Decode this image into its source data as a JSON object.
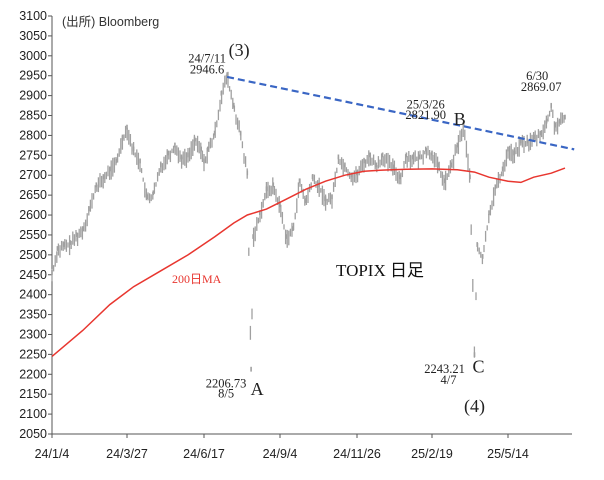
{
  "chart_data": {
    "type": "line",
    "title": "TOPIX 日足",
    "source": "(出所) Bloomberg",
    "ylim": [
      2050,
      3100
    ],
    "yticks": [
      2050,
      2100,
      2150,
      2200,
      2250,
      2300,
      2350,
      2400,
      2450,
      2500,
      2550,
      2600,
      2650,
      2700,
      2750,
      2800,
      2850,
      2900,
      2950,
      3000,
      3050,
      3100
    ],
    "xtick_labels": [
      "24/1/4",
      "24/3/27",
      "24/6/17",
      "24/9/4",
      "24/11/26",
      "25/2/19",
      "25/5/14"
    ],
    "grid": false,
    "series": [
      {
        "name": "TOPIX",
        "color": "#a0a0a0",
        "style": "daily high-low bars",
        "points": [
          [
            "24/1/4",
            2450
          ],
          [
            "24/1/10",
            2510
          ],
          [
            "24/1/17",
            2520
          ],
          [
            "24/1/24",
            2525
          ],
          [
            "24/1/31",
            2545
          ],
          [
            "24/2/7",
            2560
          ],
          [
            "24/2/14",
            2610
          ],
          [
            "24/2/22",
            2670
          ],
          [
            "24/3/1",
            2690
          ],
          [
            "24/3/8",
            2710
          ],
          [
            "24/3/15",
            2730
          ],
          [
            "24/3/22",
            2790
          ],
          [
            "24/3/27",
            2815
          ],
          [
            "24/4/3",
            2760
          ],
          [
            "24/4/10",
            2730
          ],
          [
            "24/4/17",
            2640
          ],
          [
            "24/4/24",
            2650
          ],
          [
            "24/5/2",
            2720
          ],
          [
            "24/5/10",
            2750
          ],
          [
            "24/5/17",
            2770
          ],
          [
            "24/5/24",
            2740
          ],
          [
            "24/5/31",
            2745
          ],
          [
            "24/6/7",
            2785
          ],
          [
            "24/6/14",
            2760
          ],
          [
            "24/6/17",
            2730
          ],
          [
            "24/6/21",
            2760
          ],
          [
            "24/6/28",
            2800
          ],
          [
            "24/7/5",
            2900
          ],
          [
            "24/7/11",
            2946.6
          ],
          [
            "24/7/18",
            2870
          ],
          [
            "24/7/25",
            2800
          ],
          [
            "24/8/1",
            2700
          ],
          [
            "24/8/5",
            2206.73
          ],
          [
            "24/8/7",
            2540
          ],
          [
            "24/8/14",
            2600
          ],
          [
            "24/8/21",
            2660
          ],
          [
            "24/8/28",
            2670
          ],
          [
            "24/9/4",
            2620
          ],
          [
            "24/9/11",
            2540
          ],
          [
            "24/9/18",
            2560
          ],
          [
            "24/9/25",
            2680
          ],
          [
            "24/10/2",
            2630
          ],
          [
            "24/10/9",
            2690
          ],
          [
            "24/10/16",
            2670
          ],
          [
            "24/10/23",
            2635
          ],
          [
            "24/10/30",
            2640
          ],
          [
            "24/11/6",
            2740
          ],
          [
            "24/11/13",
            2720
          ],
          [
            "24/11/20",
            2695
          ],
          [
            "24/11/26",
            2700
          ],
          [
            "24/12/4",
            2730
          ],
          [
            "24/12/11",
            2745
          ],
          [
            "24/12/18",
            2720
          ],
          [
            "24/12/25",
            2745
          ],
          [
            "25/1/7",
            2715
          ],
          [
            "25/1/14",
            2690
          ],
          [
            "25/1/21",
            2745
          ],
          [
            "25/1/28",
            2740
          ],
          [
            "25/2/4",
            2740
          ],
          [
            "25/2/12",
            2760
          ],
          [
            "25/2/19",
            2750
          ],
          [
            "25/2/26",
            2720
          ],
          [
            "25/3/5",
            2680
          ],
          [
            "25/3/12",
            2720
          ],
          [
            "25/3/19",
            2770
          ],
          [
            "25/3/26",
            2821.9
          ],
          [
            "25/4/2",
            2690
          ],
          [
            "25/4/7",
            2243.21
          ],
          [
            "25/4/10",
            2520
          ],
          [
            "25/4/16",
            2490
          ],
          [
            "25/4/23",
            2600
          ],
          [
            "25/4/30",
            2665
          ],
          [
            "25/5/8",
            2710
          ],
          [
            "25/5/14",
            2760
          ],
          [
            "25/5/21",
            2750
          ],
          [
            "25/5/28",
            2780
          ],
          [
            "25/6/4",
            2780
          ],
          [
            "25/6/11",
            2790
          ],
          [
            "25/6/18",
            2800
          ],
          [
            "25/6/25",
            2830
          ],
          [
            "25/6/30",
            2869.07
          ],
          [
            "25/7/4",
            2820
          ],
          [
            "25/7/9",
            2830
          ],
          [
            "25/7/15",
            2840
          ]
        ]
      },
      {
        "name": "200日MA",
        "color": "#e8362f",
        "points": [
          [
            "24/1/4",
            2245
          ],
          [
            "24/2/7",
            2310
          ],
          [
            "24/3/8",
            2375
          ],
          [
            "24/4/3",
            2420
          ],
          [
            "24/5/2",
            2460
          ],
          [
            "24/5/31",
            2500
          ],
          [
            "24/6/28",
            2545
          ],
          [
            "24/7/18",
            2580
          ],
          [
            "24/8/1",
            2600
          ],
          [
            "24/8/21",
            2615
          ],
          [
            "24/9/11",
            2640
          ],
          [
            "24/10/2",
            2665
          ],
          [
            "24/10/23",
            2685
          ],
          [
            "24/11/13",
            2700
          ],
          [
            "24/12/4",
            2710
          ],
          [
            "24/12/25",
            2713
          ],
          [
            "25/1/21",
            2715
          ],
          [
            "25/2/19",
            2716
          ],
          [
            "25/3/19",
            2714
          ],
          [
            "25/4/7",
            2708
          ],
          [
            "25/4/23",
            2695
          ],
          [
            "25/5/14",
            2685
          ],
          [
            "25/5/28",
            2682
          ],
          [
            "25/6/11",
            2695
          ],
          [
            "25/6/30",
            2705
          ],
          [
            "25/7/15",
            2718
          ]
        ]
      },
      {
        "name": "trendline",
        "color": "#3a66c4",
        "dashed": true,
        "points": [
          [
            "24/7/11",
            2947
          ],
          [
            "25/7/25",
            2765
          ]
        ]
      }
    ],
    "annotations": [
      {
        "text": "24/7/11",
        "at": [
          "24/7/11",
          2946.6
        ]
      },
      {
        "text": "2946.6",
        "at": [
          "24/7/11",
          2946.6
        ]
      },
      {
        "text": "(3)",
        "at": [
          "24/7/11",
          2946.6
        ]
      },
      {
        "text": "2206.73",
        "at": [
          "24/8/5",
          2206.73
        ]
      },
      {
        "text": "8/5",
        "at": [
          "24/8/5",
          2206.73
        ]
      },
      {
        "text": "A",
        "at": [
          "24/8/5",
          2206.73
        ]
      },
      {
        "text": "25/3/26",
        "at": [
          "25/3/26",
          2821.9
        ]
      },
      {
        "text": "2821.90",
        "at": [
          "25/3/26",
          2821.9
        ]
      },
      {
        "text": "B",
        "at": [
          "25/3/26",
          2821.9
        ]
      },
      {
        "text": "2243.21",
        "at": [
          "25/4/7",
          2243.21
        ]
      },
      {
        "text": "4/7",
        "at": [
          "25/4/7",
          2243.21
        ]
      },
      {
        "text": "C",
        "at": [
          "25/4/7",
          2243.21
        ]
      },
      {
        "text": "(4)",
        "at": [
          "25/4/7",
          2243.21
        ]
      },
      {
        "text": "6/30",
        "at": [
          "25/6/30",
          2869.07
        ]
      },
      {
        "text": "2869.07",
        "at": [
          "25/6/30",
          2869.07
        ]
      }
    ]
  }
}
